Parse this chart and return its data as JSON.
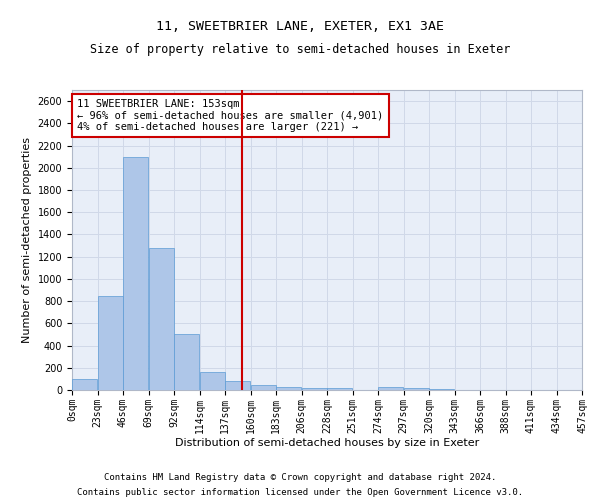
{
  "title": "11, SWEETBRIER LANE, EXETER, EX1 3AE",
  "subtitle": "Size of property relative to semi-detached houses in Exeter",
  "xlabel": "Distribution of semi-detached houses by size in Exeter",
  "ylabel": "Number of semi-detached properties",
  "footer_line1": "Contains HM Land Registry data © Crown copyright and database right 2024.",
  "footer_line2": "Contains public sector information licensed under the Open Government Licence v3.0.",
  "annotation_title": "11 SWEETBRIER LANE: 153sqm",
  "annotation_line2": "← 96% of semi-detached houses are smaller (4,901)",
  "annotation_line3": "4% of semi-detached houses are larger (221) →",
  "property_size": 153,
  "bin_edges": [
    0,
    23,
    46,
    69,
    92,
    115,
    138,
    161,
    184,
    207,
    230,
    253,
    276,
    299,
    322,
    345,
    368,
    391,
    414,
    437,
    460
  ],
  "bin_labels": [
    "0sqm",
    "23sqm",
    "46sqm",
    "69sqm",
    "92sqm",
    "114sqm",
    "137sqm",
    "160sqm",
    "183sqm",
    "206sqm",
    "228sqm",
    "251sqm",
    "274sqm",
    "297sqm",
    "320sqm",
    "343sqm",
    "366sqm",
    "388sqm",
    "411sqm",
    "434sqm",
    "457sqm"
  ],
  "bar_heights": [
    100,
    850,
    2100,
    1280,
    500,
    160,
    80,
    45,
    30,
    20,
    20,
    0,
    30,
    20,
    10,
    0,
    0,
    0,
    0,
    0
  ],
  "bar_color": "#aec6e8",
  "bar_edge_color": "#5b9bd5",
  "vline_x": 153,
  "vline_color": "#cc0000",
  "ylim": [
    0,
    2700
  ],
  "yticks": [
    0,
    200,
    400,
    600,
    800,
    1000,
    1200,
    1400,
    1600,
    1800,
    2000,
    2200,
    2400,
    2600
  ],
  "grid_color": "#d0d8e8",
  "background_color": "#e8eef8",
  "annotation_box_color": "#ffffff",
  "annotation_box_edge": "#cc0000",
  "title_fontsize": 9.5,
  "subtitle_fontsize": 8.5,
  "axis_label_fontsize": 8,
  "tick_fontsize": 7,
  "annotation_fontsize": 7.5,
  "footer_fontsize": 6.5
}
